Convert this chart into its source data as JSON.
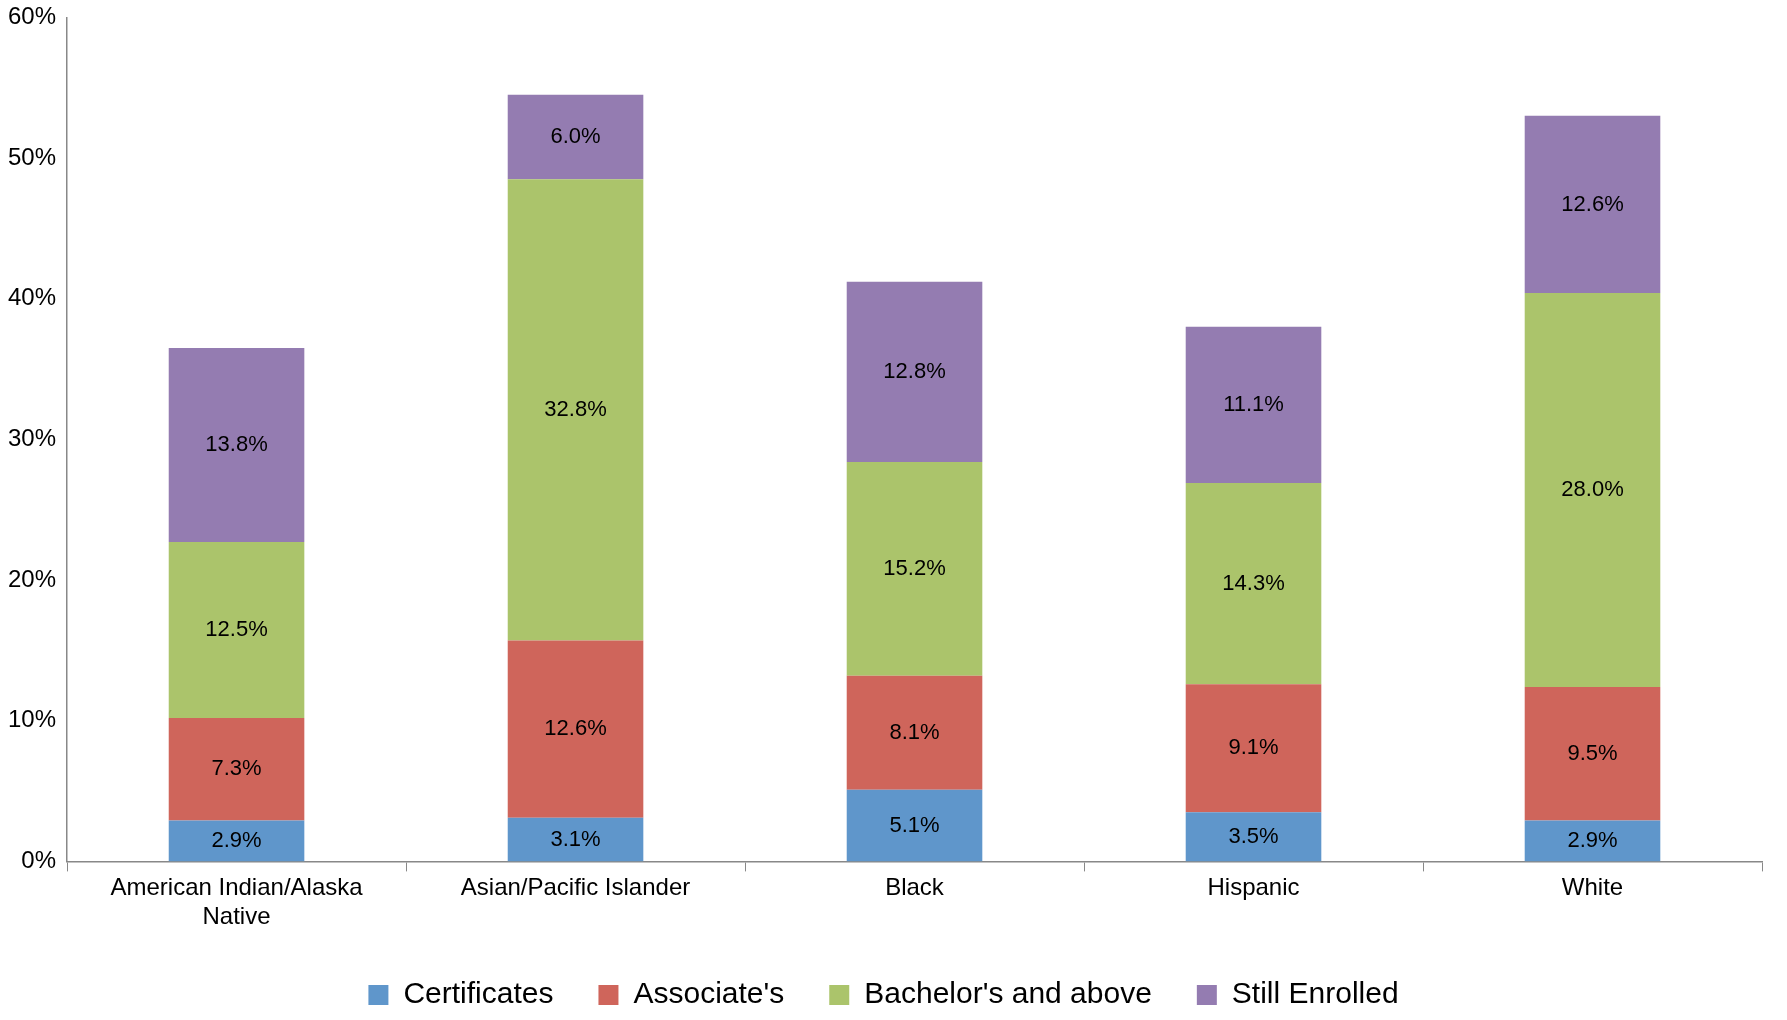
{
  "chart_data": {
    "type": "bar",
    "stacked": true,
    "categories": [
      "American Indian/Alaska Native",
      "Asian/Pacific Islander",
      "Black",
      "Hispanic",
      "White"
    ],
    "series": [
      {
        "name": "Certificates",
        "color": "#5f96cb",
        "values": [
          2.9,
          3.1,
          5.1,
          3.5,
          2.9
        ],
        "value_labels": [
          "2.9%",
          "3.1%",
          "5.1%",
          "3.5%",
          "2.9%"
        ]
      },
      {
        "name": "Associate's",
        "color": "#cf655b",
        "values": [
          7.3,
          12.6,
          8.1,
          9.1,
          9.5
        ],
        "value_labels": [
          "7.3%",
          "12.6%",
          "8.1%",
          "9.1%",
          "9.5%"
        ]
      },
      {
        "name": "Bachelor's and above",
        "color": "#abc46b",
        "values": [
          12.5,
          32.8,
          15.2,
          14.3,
          28.0
        ],
        "value_labels": [
          "12.5%",
          "32.8%",
          "15.2%",
          "14.3%",
          "28.0%"
        ]
      },
      {
        "name": "Still Enrolled",
        "color": "#947cb1",
        "values": [
          13.8,
          6.0,
          12.8,
          11.1,
          12.6
        ],
        "value_labels": [
          "13.8%",
          "6.0%",
          "12.8%",
          "11.1%",
          "12.6%"
        ]
      }
    ],
    "ylim": [
      0,
      60
    ],
    "yticks": [
      {
        "value": 0,
        "label": "0%"
      },
      {
        "value": 10,
        "label": "10%"
      },
      {
        "value": 20,
        "label": "20%"
      },
      {
        "value": 30,
        "label": "30%"
      },
      {
        "value": 40,
        "label": "40%"
      },
      {
        "value": 50,
        "label": "50%"
      },
      {
        "value": 60,
        "label": "60%"
      }
    ],
    "grid": false,
    "legend": "bottom"
  }
}
